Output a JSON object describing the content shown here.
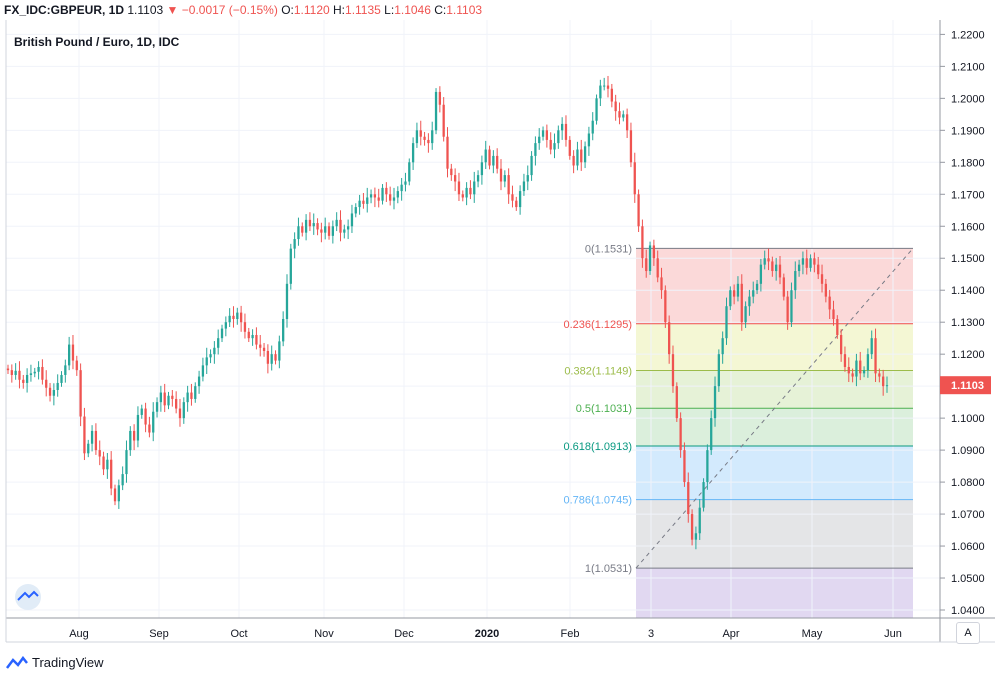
{
  "header": {
    "symbol": "FX_IDC:GBPEUR, 1D",
    "last": "1.1103",
    "change": "−0.0017 (−0.15%)",
    "o_label": "O:",
    "o": "1.1120",
    "h_label": "H:",
    "h": "1.1135",
    "l_label": "L:",
    "l": "1.1046",
    "c_label": "C:",
    "c": "1.1103"
  },
  "footer": {
    "brand": "TradingView",
    "auto_label": "A"
  },
  "colors": {
    "up": "#26a69a",
    "down": "#ef5350",
    "price_tag": "#ef5350"
  },
  "chart_data": {
    "type": "candlestick",
    "title": "British Pound / Euro, 1D, IDC",
    "ylim": [
      1.0375,
      1.2245
    ],
    "y_ticks": [
      "1.2200",
      "1.2100",
      "1.2000",
      "1.1900",
      "1.1800",
      "1.1700",
      "1.1600",
      "1.1500",
      "1.1400",
      "1.1300",
      "1.1200",
      "1.1100",
      "1.1000",
      "1.0900",
      "1.0800",
      "1.0700",
      "1.0600",
      "1.0500",
      "1.0400"
    ],
    "x_ticks": [
      "Aug",
      "Sep",
      "Oct",
      "Nov",
      "Dec",
      "2020",
      "Feb",
      "3",
      "Apr",
      "May",
      "Jun"
    ],
    "last_price": "1.1103",
    "grid": true,
    "fib_levels": [
      {
        "label": "0(1.1531)",
        "value": 1.1531,
        "color": "#787b86"
      },
      {
        "label": "0.236(1.1295)",
        "value": 1.1295,
        "color": "#ef5350"
      },
      {
        "label": "0.382(1.1149)",
        "value": 1.1149,
        "color": "#9cbc4a"
      },
      {
        "label": "0.5(1.1031)",
        "value": 1.1031,
        "color": "#4caf50"
      },
      {
        "label": "0.618(1.0913)",
        "value": 1.0913,
        "color": "#089981"
      },
      {
        "label": "0.786(1.0745)",
        "value": 1.0745,
        "color": "#64b5f6"
      },
      {
        "label": "1(1.0531)",
        "value": 1.0531,
        "color": "#787b86"
      }
    ],
    "fib_bands": [
      {
        "from": 1.1531,
        "to": 1.1295,
        "color": "rgba(239,83,80,0.22)"
      },
      {
        "from": 1.1295,
        "to": 1.1149,
        "color": "rgba(205,220,57,0.22)"
      },
      {
        "from": 1.1149,
        "to": 1.1031,
        "color": "rgba(139,195,74,0.22)"
      },
      {
        "from": 1.1031,
        "to": 1.0913,
        "color": "rgba(76,175,80,0.20)"
      },
      {
        "from": 1.0913,
        "to": 1.0745,
        "color": "rgba(33,150,243,0.20)"
      },
      {
        "from": 1.0745,
        "to": 1.0531,
        "color": "rgba(120,123,134,0.20)"
      },
      {
        "from": 1.0531,
        "to": 1.0375,
        "color": "rgba(103,58,183,0.20)"
      }
    ],
    "closes": [
      1.115,
      1.1135,
      1.1148,
      1.112,
      1.111,
      1.1135,
      1.114,
      1.1145,
      1.116,
      1.112,
      1.1095,
      1.107,
      1.1088,
      1.111,
      1.1135,
      1.1165,
      1.123,
      1.118,
      1.115,
      1.1005,
      1.089,
      1.092,
      1.096,
      1.09,
      1.088,
      1.084,
      1.087,
      1.078,
      1.074,
      1.079,
      1.0825,
      1.09,
      1.096,
      1.093,
      1.101,
      1.103,
      1.098,
      1.0955,
      1.102,
      1.105,
      1.108,
      1.104,
      1.107,
      1.106,
      1.103,
      1.1,
      1.105,
      1.108,
      1.106,
      1.11,
      1.113,
      1.1165,
      1.119,
      1.12,
      1.122,
      1.125,
      1.128,
      1.13,
      1.132,
      1.131,
      1.133,
      1.13,
      1.127,
      1.125,
      1.126,
      1.123,
      1.122,
      1.121,
      1.117,
      1.12,
      1.118,
      1.124,
      1.131,
      1.142,
      1.153,
      1.156,
      1.16,
      1.158,
      1.162,
      1.16,
      1.161,
      1.159,
      1.158,
      1.16,
      1.157,
      1.16,
      1.162,
      1.158,
      1.159,
      1.16,
      1.164,
      1.166,
      1.168,
      1.167,
      1.169,
      1.17,
      1.169,
      1.168,
      1.172,
      1.17,
      1.168,
      1.169,
      1.171,
      1.173,
      1.174,
      1.18,
      1.186,
      1.19,
      1.188,
      1.187,
      1.186,
      1.19,
      1.202,
      1.198,
      1.188,
      1.178,
      1.176,
      1.174,
      1.17,
      1.169,
      1.172,
      1.17,
      1.174,
      1.176,
      1.18,
      1.184,
      1.179,
      1.182,
      1.178,
      1.174,
      1.176,
      1.17,
      1.168,
      1.166,
      1.171,
      1.174,
      1.176,
      1.182,
      1.186,
      1.188,
      1.19,
      1.187,
      1.184,
      1.186,
      1.19,
      1.192,
      1.187,
      1.182,
      1.179,
      1.184,
      1.18,
      1.185,
      1.189,
      1.193,
      1.2,
      1.204,
      1.204,
      1.203,
      1.199,
      1.196,
      1.194,
      1.195,
      1.19,
      1.18,
      1.17,
      1.16,
      1.15,
      1.146,
      1.154,
      1.15,
      1.144,
      1.14,
      1.13,
      1.12,
      1.11,
      1.1,
      1.09,
      1.08,
      1.07,
      1.062,
      1.064,
      1.072,
      1.08,
      1.09,
      1.1,
      1.11,
      1.12,
      1.125,
      1.135,
      1.14,
      1.138,
      1.142,
      1.13,
      1.135,
      1.138,
      1.14,
      1.142,
      1.148,
      1.15,
      1.149,
      1.146,
      1.148,
      1.144,
      1.138,
      1.13,
      1.14,
      1.146,
      1.148,
      1.15,
      1.147,
      1.15,
      1.148,
      1.145,
      1.142,
      1.138,
      1.134,
      1.131,
      1.126,
      1.12,
      1.116,
      1.114,
      1.113,
      1.118,
      1.114,
      1.115,
      1.12,
      1.125,
      1.114,
      1.113,
      1.11,
      1.1103
    ]
  }
}
